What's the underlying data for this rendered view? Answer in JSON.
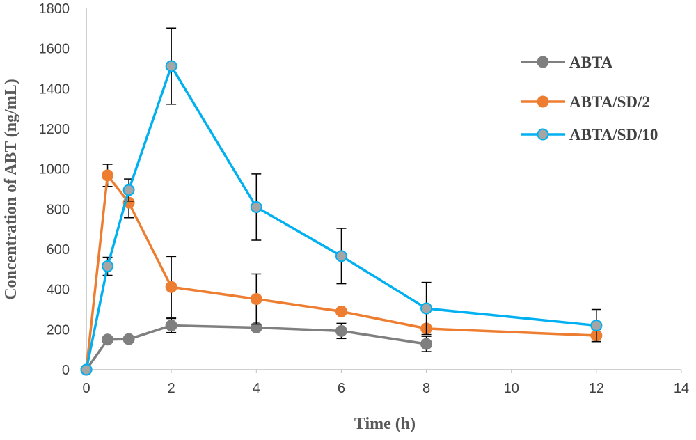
{
  "chart_data": {
    "type": "line",
    "title": "",
    "xlabel": "Time (h)",
    "ylabel": "Concentration of ABT (ng/mL)",
    "xlim": [
      0,
      14
    ],
    "ylim": [
      0,
      1800
    ],
    "xticks": [
      0,
      2,
      4,
      6,
      8,
      10,
      12,
      14
    ],
    "yticks": [
      0,
      200,
      400,
      600,
      800,
      1000,
      1200,
      1400,
      1600,
      1800
    ],
    "grid": false,
    "legend_position": "right",
    "series": [
      {
        "name": "ABTA",
        "color": "#7f7f7f",
        "marker_color": "#7f7f7f",
        "x": [
          0,
          0.5,
          1,
          2,
          4,
          6,
          8
        ],
        "y": [
          0,
          150,
          152,
          220,
          210,
          193,
          128
        ],
        "err": [
          0,
          0,
          0,
          35,
          0,
          38,
          38
        ]
      },
      {
        "name": "ABTA/SD/2",
        "color": "#ed7d31",
        "marker_color": "#ed7d31",
        "x": [
          0,
          0.5,
          1,
          2,
          4,
          6,
          8,
          12
        ],
        "y": [
          0,
          968,
          832,
          412,
          352,
          290,
          205,
          170
        ],
        "err": [
          0,
          55,
          75,
          152,
          125,
          0,
          0,
          30
        ]
      },
      {
        "name": "ABTA/SD/10",
        "color": "#00b0f0",
        "marker_color": "#a5a5a5",
        "x": [
          0,
          0.5,
          1,
          2,
          4,
          6,
          8,
          12
        ],
        "y": [
          0,
          515,
          895,
          1512,
          810,
          566,
          305,
          220
        ],
        "err": [
          0,
          45,
          55,
          190,
          165,
          138,
          130,
          80
        ]
      }
    ]
  }
}
